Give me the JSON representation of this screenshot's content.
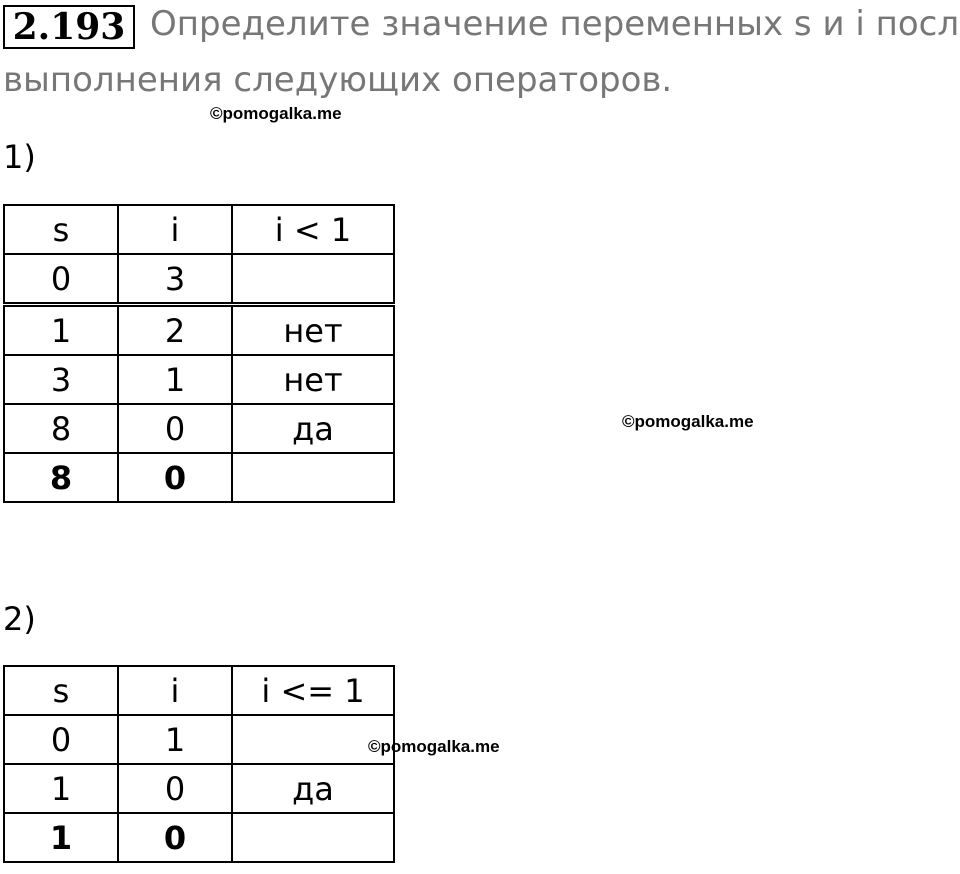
{
  "problem_number": "2.193",
  "title_line1": "Определите значение переменных s и i после",
  "title_line2": "выполнения следующих операторов.",
  "watermark": "©pomogalka.me",
  "part1": {
    "label": "1)",
    "headers": [
      "s",
      "i",
      "i < 1"
    ],
    "rows": [
      [
        "0",
        "3",
        ""
      ],
      [
        "1",
        "2",
        "нет"
      ],
      [
        "3",
        "1",
        "нет"
      ],
      [
        "8",
        "0",
        "да"
      ],
      [
        "8",
        "0",
        ""
      ]
    ]
  },
  "part2": {
    "label": "2)",
    "headers": [
      "s",
      "i",
      "i <= 1"
    ],
    "rows": [
      [
        "0",
        "1",
        ""
      ],
      [
        "1",
        "0",
        "да"
      ],
      [
        "1",
        "0",
        ""
      ]
    ]
  }
}
